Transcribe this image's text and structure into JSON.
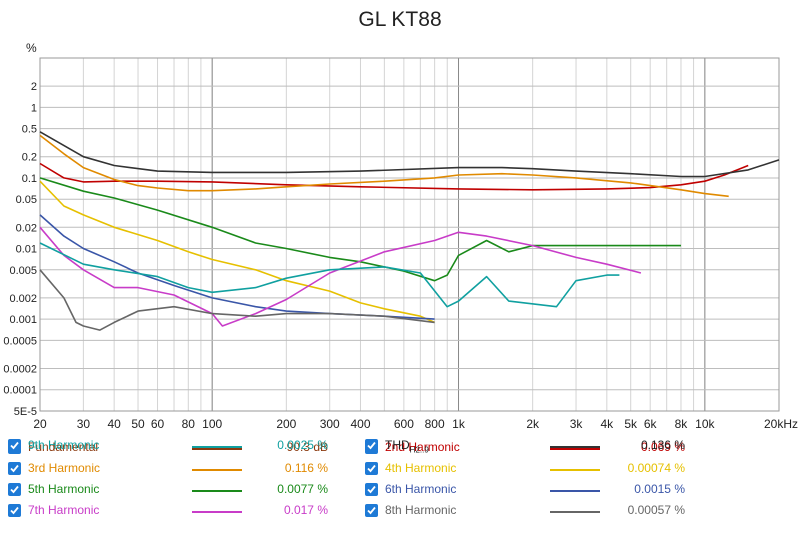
{
  "chart_data": {
    "type": "line",
    "title": "GL KT88",
    "ylabel": "%",
    "xlabel": "",
    "x_unit_label": "20kHz",
    "x_scale": "log",
    "y_scale": "log",
    "xlim": [
      20,
      20000
    ],
    "ylim": [
      5e-05,
      5
    ],
    "grid": true,
    "legend_placement": "bottom",
    "x_ticks": [
      {
        "v": 20,
        "label": "20"
      },
      {
        "v": 30,
        "label": "30"
      },
      {
        "v": 40,
        "label": "40"
      },
      {
        "v": 50,
        "label": "50"
      },
      {
        "v": 60,
        "label": "60"
      },
      {
        "v": 80,
        "label": "80"
      },
      {
        "v": 100,
        "label": "100"
      },
      {
        "v": 200,
        "label": "200"
      },
      {
        "v": 300,
        "label": "300"
      },
      {
        "v": 400,
        "label": "400"
      },
      {
        "v": 600,
        "label": "600"
      },
      {
        "v": 800,
        "label": "800"
      },
      {
        "v": 1000,
        "label": "1k"
      },
      {
        "v": 2000,
        "label": "2k"
      },
      {
        "v": 3000,
        "label": "3k"
      },
      {
        "v": 4000,
        "label": "4k"
      },
      {
        "v": 5000,
        "label": "5k"
      },
      {
        "v": 6000,
        "label": "6k"
      },
      {
        "v": 8000,
        "label": "8k"
      },
      {
        "v": 10000,
        "label": "10k"
      },
      {
        "v": 20000,
        "label": "20kHz"
      }
    ],
    "y_ticks": [
      {
        "v": 2,
        "label": "2"
      },
      {
        "v": 1,
        "label": "1"
      },
      {
        "v": 0.5,
        "label": "0.5"
      },
      {
        "v": 0.2,
        "label": "0.2"
      },
      {
        "v": 0.1,
        "label": "0.1"
      },
      {
        "v": 0.05,
        "label": "0.05"
      },
      {
        "v": 0.02,
        "label": "0.02"
      },
      {
        "v": 0.01,
        "label": "0.01"
      },
      {
        "v": 0.005,
        "label": "0.005"
      },
      {
        "v": 0.002,
        "label": "0.002"
      },
      {
        "v": 0.001,
        "label": "0.001"
      },
      {
        "v": 0.0005,
        "label": "0.0005"
      },
      {
        "v": 0.0002,
        "label": "0.0002"
      },
      {
        "v": 0.0001,
        "label": "0.0001"
      },
      {
        "v": 5e-05,
        "label": "5E-5"
      }
    ],
    "series": [
      {
        "name": "Fundamental",
        "value": "90.3 dB",
        "color": "#8b3a0f",
        "plotted": false,
        "x": [],
        "y": []
      },
      {
        "name": "2nd Harmonic",
        "value": "0.069 %",
        "color": "#c00000",
        "x": [
          20,
          25,
          30,
          40,
          60,
          100,
          200,
          400,
          1000,
          2000,
          4000,
          6000,
          8000,
          10000,
          12000,
          15000
        ],
        "y": [
          0.16,
          0.1,
          0.088,
          0.09,
          0.09,
          0.088,
          0.08,
          0.075,
          0.07,
          0.068,
          0.07,
          0.073,
          0.08,
          0.09,
          0.11,
          0.15
        ]
      },
      {
        "name": "3rd Harmonic",
        "value": "0.116 %",
        "color": "#e08a00",
        "x": [
          20,
          25,
          30,
          40,
          50,
          60,
          80,
          100,
          150,
          200,
          300,
          500,
          800,
          1000,
          1500,
          2000,
          3000,
          5000,
          8000,
          10000,
          12500
        ],
        "y": [
          0.4,
          0.22,
          0.14,
          0.095,
          0.078,
          0.072,
          0.066,
          0.066,
          0.07,
          0.075,
          0.082,
          0.09,
          0.1,
          0.11,
          0.115,
          0.11,
          0.1,
          0.085,
          0.068,
          0.06,
          0.055
        ]
      },
      {
        "name": "4th Harmonic",
        "value": "0.00074 %",
        "color": "#e6c000",
        "x": [
          20,
          25,
          30,
          40,
          60,
          80,
          100,
          150,
          200,
          300,
          400,
          500,
          700,
          800
        ],
        "y": [
          0.09,
          0.04,
          0.03,
          0.02,
          0.013,
          0.009,
          0.007,
          0.005,
          0.0035,
          0.0025,
          0.0017,
          0.0014,
          0.0011,
          0.0009
        ]
      },
      {
        "name": "5th Harmonic",
        "value": "0.0077 %",
        "color": "#1a8a1a",
        "x": [
          20,
          30,
          40,
          60,
          100,
          150,
          200,
          300,
          400,
          600,
          800,
          900,
          1000,
          1300,
          1600,
          2000,
          3000,
          5000,
          8000
        ],
        "y": [
          0.1,
          0.065,
          0.052,
          0.035,
          0.02,
          0.012,
          0.01,
          0.0075,
          0.0065,
          0.0048,
          0.0035,
          0.0042,
          0.008,
          0.013,
          0.009,
          0.011,
          0.011,
          0.011,
          0.011
        ]
      },
      {
        "name": "6th Harmonic",
        "value": "0.0015 %",
        "color": "#3a56a8",
        "x": [
          20,
          25,
          30,
          40,
          50,
          70,
          100,
          150,
          200,
          300,
          500,
          800
        ],
        "y": [
          0.03,
          0.015,
          0.01,
          0.0065,
          0.0045,
          0.003,
          0.002,
          0.0015,
          0.0013,
          0.0012,
          0.0011,
          0.001
        ]
      },
      {
        "name": "7th Harmonic",
        "value": "0.017 %",
        "color": "#c83cc8",
        "x": [
          20,
          25,
          30,
          40,
          50,
          70,
          100,
          110,
          150,
          200,
          300,
          500,
          800,
          1000,
          1300,
          2000,
          3000,
          4000,
          5500
        ],
        "y": [
          0.02,
          0.008,
          0.005,
          0.0028,
          0.0028,
          0.0022,
          0.0012,
          0.0008,
          0.0012,
          0.0019,
          0.0045,
          0.009,
          0.013,
          0.017,
          0.015,
          0.011,
          0.0075,
          0.006,
          0.0045
        ]
      },
      {
        "name": "8th Harmonic",
        "value": "0.00057 %",
        "color": "#666666",
        "x": [
          20,
          25,
          28,
          30,
          35,
          40,
          50,
          70,
          100,
          150,
          200,
          300,
          500,
          800
        ],
        "y": [
          0.005,
          0.002,
          0.0009,
          0.0008,
          0.0007,
          0.0009,
          0.0013,
          0.0015,
          0.0012,
          0.0011,
          0.0012,
          0.0012,
          0.0011,
          0.0009
        ]
      },
      {
        "name": "9th Harmonic",
        "value": "0.0025 %",
        "color": "#10a0a0",
        "x": [
          20,
          30,
          40,
          60,
          80,
          100,
          150,
          200,
          300,
          500,
          700,
          900,
          1000,
          1300,
          1600,
          2500,
          3000,
          4000,
          4500
        ],
        "y": [
          0.012,
          0.006,
          0.005,
          0.004,
          0.0028,
          0.0024,
          0.0028,
          0.0038,
          0.005,
          0.0055,
          0.0045,
          0.0015,
          0.0018,
          0.004,
          0.0018,
          0.0015,
          0.0035,
          0.0042,
          0.0042
        ]
      },
      {
        "name": "THD",
        "name_sub": "H2..9",
        "value": "0.136 %",
        "color": "#333333",
        "x": [
          20,
          30,
          40,
          60,
          100,
          200,
          400,
          1000,
          1500,
          2000,
          3000,
          5000,
          8000,
          10000,
          15000,
          20000
        ],
        "y": [
          0.45,
          0.2,
          0.15,
          0.125,
          0.12,
          0.12,
          0.125,
          0.14,
          0.14,
          0.135,
          0.125,
          0.115,
          0.105,
          0.105,
          0.13,
          0.18
        ]
      }
    ]
  }
}
